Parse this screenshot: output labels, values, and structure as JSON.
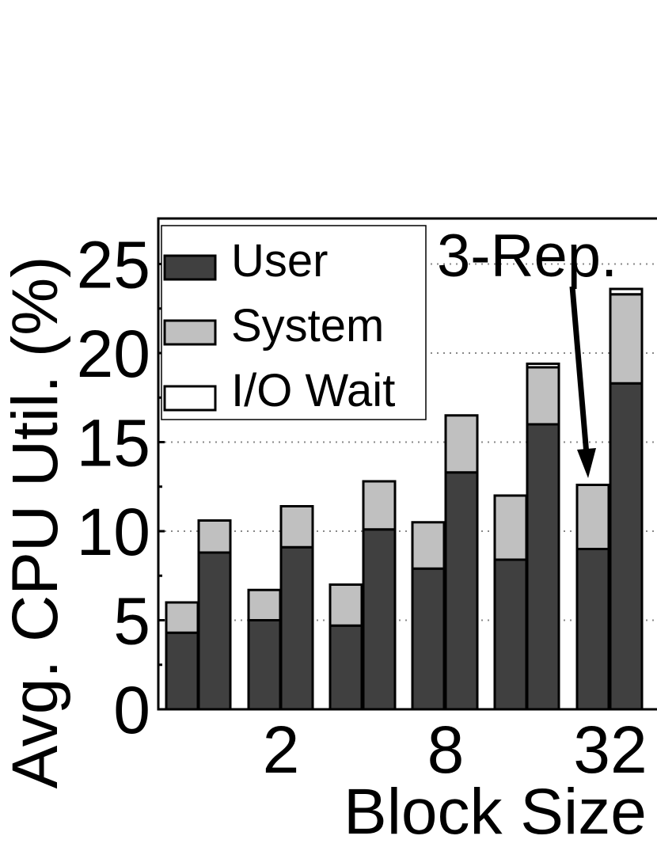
{
  "chart_data": {
    "type": "bar",
    "stacked": true,
    "xlabel": "Block Size",
    "ylabel": "Avg. CPU Util. (%)",
    "ylim": [
      0,
      27
    ],
    "yticks": [
      "0",
      "5",
      "10",
      "15",
      "20",
      "25"
    ],
    "xticks": [
      "2",
      "8",
      "32"
    ],
    "grid": "horizontal dotted",
    "legend_position": "top-left",
    "annotation": "3-Rep.",
    "colors": {
      "User": "#404040",
      "System": "#c0c0c0",
      "I/O Wait": "#ffffff"
    },
    "series": [
      {
        "name": "User",
        "values": [
          4.3,
          8.8,
          5.0,
          9.1,
          4.7,
          10.1,
          7.9,
          13.3,
          8.4,
          16.0,
          9.0,
          18.3
        ]
      },
      {
        "name": "System",
        "values": [
          1.7,
          1.8,
          1.7,
          2.3,
          2.3,
          2.7,
          2.6,
          3.2,
          3.6,
          3.2,
          3.6,
          5.0
        ]
      },
      {
        "name": "I/O Wait",
        "values": [
          0.0,
          0.0,
          0.0,
          0.0,
          0.0,
          0.0,
          0.0,
          0.0,
          0.0,
          0.2,
          0.0,
          0.3
        ]
      }
    ]
  }
}
